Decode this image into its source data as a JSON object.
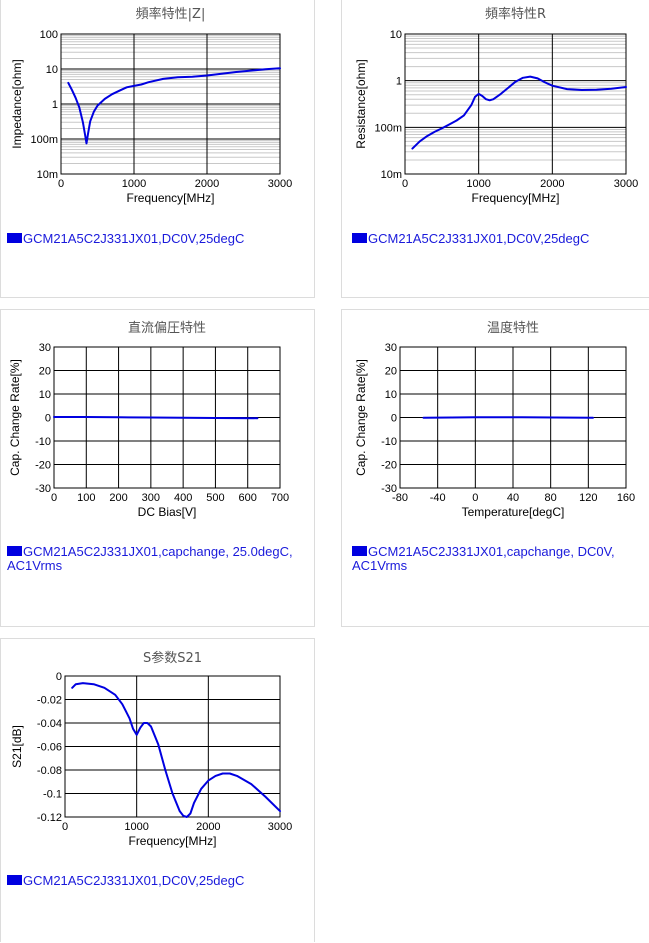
{
  "colors": {
    "series": "#0000e0",
    "legend_text": "#1a1adb",
    "grid_major": "#000000",
    "grid_minor": "#c8c8c8"
  },
  "chart_data": [
    {
      "id": "c1",
      "type": "line",
      "title": "頻率特性|Z|",
      "xlabel": "Frequency[MHz]",
      "ylabel": "Impedance[ohm]",
      "xlim": [
        0,
        3000
      ],
      "ylim": [
        0.01,
        100
      ],
      "yscale": "log",
      "grid": true,
      "xticks": [
        "0",
        "1000",
        "2000",
        "3000"
      ],
      "yticks": [
        "10m",
        "100m",
        "1",
        "10",
        "100"
      ],
      "legend": "GCM21A5C2J331JX01,DC0V,25degC",
      "series": [
        {
          "x": [
            100,
            150,
            200,
            250,
            300,
            330,
            350,
            370,
            400,
            450,
            500,
            600,
            700,
            800,
            900,
            1000,
            1100,
            1200,
            1400,
            1600,
            1800,
            2000,
            2200,
            2400,
            2600,
            2800,
            3000
          ],
          "y": [
            4.0,
            2.5,
            1.5,
            0.8,
            0.3,
            0.13,
            0.075,
            0.14,
            0.32,
            0.6,
            0.9,
            1.4,
            1.9,
            2.4,
            3.0,
            3.3,
            3.6,
            4.2,
            5.2,
            5.8,
            6.0,
            6.5,
            7.3,
            8.2,
            9.0,
            9.8,
            10.5
          ]
        }
      ]
    },
    {
      "id": "c2",
      "type": "line",
      "title": "頻率特性R",
      "xlabel": "Frequency[MHz]",
      "ylabel": "Resistance[ohm]",
      "xlim": [
        0,
        3000
      ],
      "ylim": [
        0.01,
        10
      ],
      "yscale": "log",
      "grid": true,
      "xticks": [
        "0",
        "1000",
        "2000",
        "3000"
      ],
      "yticks": [
        "10m",
        "100m",
        "1",
        "10"
      ],
      "legend": "GCM21A5C2J331JX01,DC0V,25degC",
      "series": [
        {
          "x": [
            100,
            200,
            300,
            400,
            500,
            600,
            700,
            800,
            900,
            950,
            1000,
            1050,
            1100,
            1150,
            1200,
            1300,
            1400,
            1500,
            1600,
            1700,
            1800,
            1900,
            2000,
            2200,
            2400,
            2600,
            2800,
            3000
          ],
          "y": [
            0.035,
            0.05,
            0.065,
            0.08,
            0.095,
            0.115,
            0.14,
            0.18,
            0.3,
            0.45,
            0.52,
            0.47,
            0.4,
            0.38,
            0.4,
            0.52,
            0.7,
            0.95,
            1.15,
            1.22,
            1.12,
            0.92,
            0.78,
            0.66,
            0.63,
            0.64,
            0.67,
            0.73
          ]
        }
      ]
    },
    {
      "id": "c3",
      "type": "line",
      "title": "直流偏圧特性",
      "xlabel": "DC Bias[V]",
      "ylabel": "Cap. Change Rate[%]",
      "xlim": [
        0,
        700
      ],
      "ylim": [
        -30,
        30
      ],
      "grid": true,
      "xticks": [
        "0",
        "100",
        "200",
        "300",
        "400",
        "500",
        "600",
        "700"
      ],
      "yticks": [
        "-30",
        "-20",
        "-10",
        "0",
        "10",
        "20",
        "30"
      ],
      "legend": "GCM21A5C2J331JX01,capchange, 25.0degC, AC1Vrms",
      "series": [
        {
          "x": [
            0,
            100,
            200,
            300,
            400,
            500,
            630
          ],
          "y": [
            0.2,
            0.2,
            0.1,
            0.0,
            -0.1,
            -0.2,
            -0.3
          ]
        }
      ]
    },
    {
      "id": "c4",
      "type": "line",
      "title": "温度特性",
      "xlabel": "Temperature[degC]",
      "ylabel": "Cap. Change Rate[%]",
      "xlim": [
        -80,
        160
      ],
      "ylim": [
        -30,
        30
      ],
      "grid": true,
      "xticks": [
        "-80",
        "-40",
        "0",
        "40",
        "80",
        "120",
        "160"
      ],
      "yticks": [
        "-30",
        "-20",
        "-10",
        "0",
        "10",
        "20",
        "30"
      ],
      "legend": "GCM21A5C2J331JX01,capchange, DC0V, AC1Vrms",
      "series": [
        {
          "x": [
            -55,
            -25,
            0,
            25,
            50,
            85,
            125
          ],
          "y": [
            -0.1,
            0.0,
            0.1,
            0.1,
            0.1,
            0.0,
            -0.1
          ]
        }
      ]
    },
    {
      "id": "c5",
      "type": "line",
      "title": "S参数S21",
      "xlabel": "Frequency[MHz]",
      "ylabel": "S21[dB]",
      "xlim": [
        0,
        3000
      ],
      "ylim": [
        -0.12,
        0
      ],
      "grid": true,
      "xticks": [
        "0",
        "1000",
        "2000",
        "3000"
      ],
      "yticks": [
        "-0.12",
        "-0.1",
        "-0.08",
        "-0.06",
        "-0.04",
        "-0.02",
        "0"
      ],
      "legend": "GCM21A5C2J331JX01,DC0V,25degC",
      "series": [
        {
          "x": [
            100,
            150,
            250,
            400,
            550,
            700,
            800,
            900,
            950,
            1000,
            1050,
            1100,
            1150,
            1200,
            1300,
            1400,
            1500,
            1600,
            1650,
            1700,
            1750,
            1800,
            1900,
            2000,
            2100,
            2200,
            2300,
            2400,
            2600,
            2800,
            3000
          ],
          "y": [
            -0.01,
            -0.007,
            -0.006,
            -0.007,
            -0.01,
            -0.016,
            -0.024,
            -0.036,
            -0.045,
            -0.05,
            -0.044,
            -0.04,
            -0.04,
            -0.043,
            -0.058,
            -0.08,
            -0.1,
            -0.115,
            -0.119,
            -0.12,
            -0.117,
            -0.108,
            -0.096,
            -0.089,
            -0.085,
            -0.083,
            -0.083,
            -0.085,
            -0.092,
            -0.103,
            -0.115
          ]
        }
      ]
    }
  ]
}
